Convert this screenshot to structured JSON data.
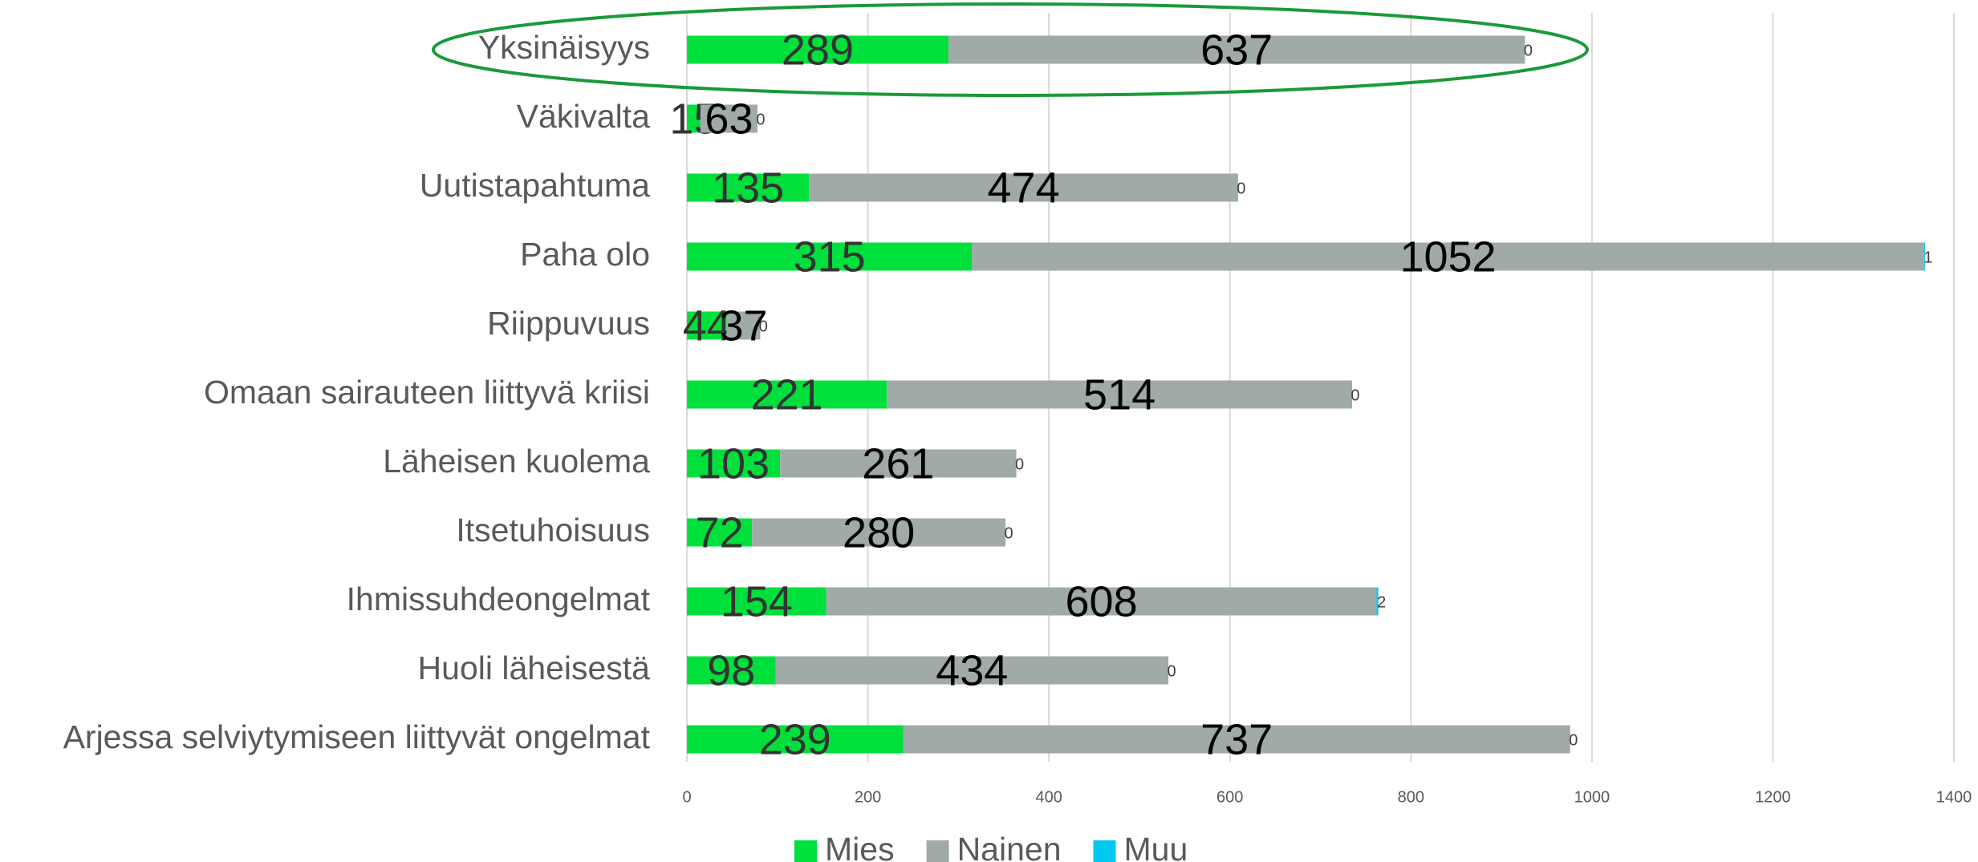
{
  "chart_data": {
    "type": "stacked-bar-horizontal",
    "categories": [
      "Yksinäisyys",
      "Väkivalta",
      "Uutistapahtuma",
      "Paha olo",
      "Riippuvuus",
      "Omaan sairauteen liittyvä kriisi",
      "Läheisen kuolema",
      "Itsetuhoisuus",
      "Ihmissuhdeongelmat",
      "Huoli läheisestä",
      "Arjessa selviytymiseen liittyvät ongelmat"
    ],
    "series": [
      {
        "name": "Mies",
        "color": "#00e03c",
        "values": [
          289,
          15,
          135,
          315,
          44,
          221,
          103,
          72,
          154,
          98,
          239
        ]
      },
      {
        "name": "Nainen",
        "color": "#a0aaa8",
        "values": [
          637,
          63,
          474,
          1052,
          37,
          514,
          261,
          280,
          608,
          434,
          737
        ]
      },
      {
        "name": "Muu",
        "color": "#00c8f0",
        "values": [
          0,
          0,
          0,
          1,
          0,
          0,
          0,
          0,
          2,
          0,
          0
        ]
      }
    ],
    "xlim": [
      0,
      1400
    ],
    "xticks": [
      0,
      200,
      400,
      600,
      800,
      1000,
      1200,
      1400
    ],
    "grid": true,
    "legend": "bottom"
  }
}
